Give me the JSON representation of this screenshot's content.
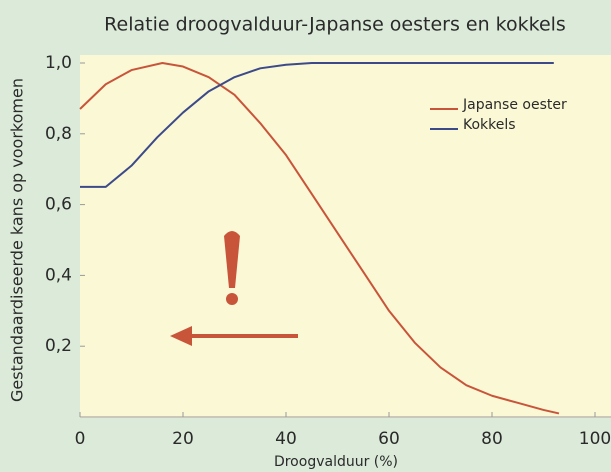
{
  "chart_data": {
    "type": "line",
    "title": "Relatie droogvalduur-Japanse oesters en kokkels",
    "x_label": "Droogvalduur (%)",
    "y_label": "Gestandaardiseerde kans op voorkomen",
    "xlim": [
      0,
      100
    ],
    "ylim": [
      0,
      1
    ],
    "xticks": [
      0,
      20,
      40,
      60,
      80,
      100
    ],
    "yticks": [
      {
        "value": 0.2,
        "label": "0,2"
      },
      {
        "value": 0.4,
        "label": "0,4"
      },
      {
        "value": 0.6,
        "label": "0,6"
      },
      {
        "value": 0.8,
        "label": "0,8"
      },
      {
        "value": 1,
        "label": "1,0"
      }
    ],
    "grid": false,
    "legend": "upper right",
    "series": [
      {
        "name": "Japanse oester",
        "color": "#c8553a",
        "x": [
          0,
          5,
          10,
          16,
          20,
          25,
          30,
          35,
          40,
          45,
          50,
          55,
          60,
          65,
          70,
          75,
          80,
          85,
          90,
          93
        ],
        "values": [
          0.87,
          0.94,
          0.98,
          1.0,
          0.99,
          0.96,
          0.91,
          0.83,
          0.74,
          0.63,
          0.52,
          0.41,
          0.3,
          0.21,
          0.14,
          0.09,
          0.06,
          0.04,
          0.02,
          0.01
        ]
      },
      {
        "name": "Kokkels",
        "color": "#3d4a8a",
        "x": [
          0,
          5,
          10,
          15,
          20,
          25,
          30,
          35,
          40,
          45,
          60,
          80,
          92
        ],
        "values": [
          0.65,
          0.65,
          0.71,
          0.79,
          0.86,
          0.92,
          0.96,
          0.985,
          0.995,
          1.0,
          1.0,
          1.0,
          1.0
        ]
      }
    ]
  }
}
